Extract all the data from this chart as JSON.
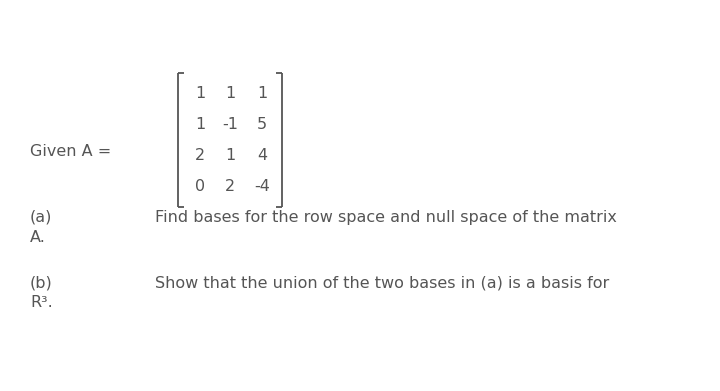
{
  "background_color": "#ffffff",
  "given_label": "Given A =",
  "matrix_rows": [
    [
      "1",
      "1",
      "1"
    ],
    [
      "1",
      "-1",
      "5"
    ],
    [
      "2",
      "1",
      "4"
    ],
    [
      "0",
      "2",
      "-4"
    ]
  ],
  "part_a_label": "(a)",
  "part_a_text": "Find bases for the row space and null space of the matrix",
  "part_a_continuation": "A.",
  "part_b_label": "(b)",
  "part_b_text": "Show that the union of the two bases in (a) is a basis for",
  "part_b_continuation": "R³.",
  "font_size_main": 11.5,
  "font_size_matrix": 11.5,
  "text_color": "#555555"
}
